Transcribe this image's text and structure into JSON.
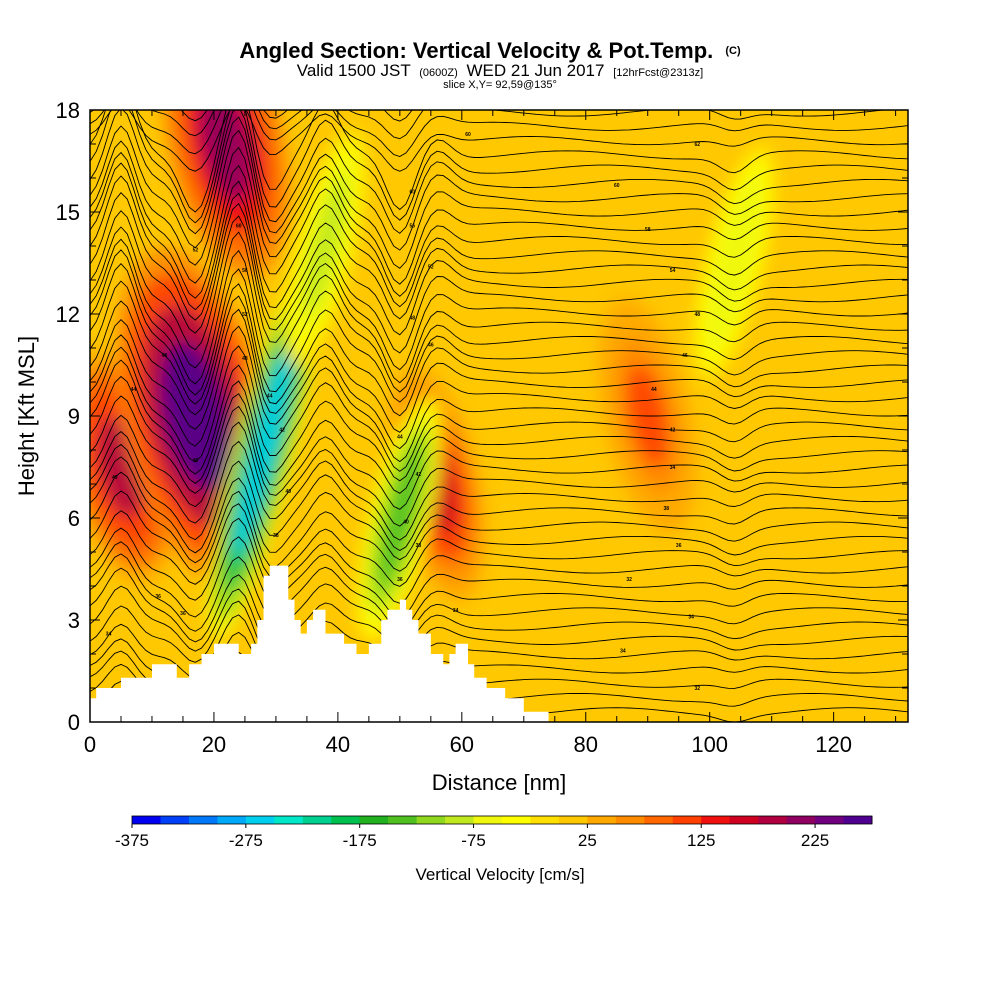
{
  "title": {
    "main": "Angled Section: Vertical Velocity & Pot.Temp.",
    "unit_tag": "(C)",
    "valid_prefix": "Valid 1500 JST",
    "valid_utc": "(0600Z)",
    "valid_date": "WED 21 Jun 2017",
    "forecast_tag": "[12hrFcst@2313z]",
    "slice": "slice X,Y= 92,59@135°"
  },
  "chart_data": {
    "type": "heatmap",
    "xlabel": "Distance [nm]",
    "ylabel": "Height [Kft MSL]",
    "xlim": [
      0,
      132
    ],
    "ylim": [
      0,
      18
    ],
    "x_ticks": [
      "0",
      "20",
      "40",
      "60",
      "80",
      "100",
      "120"
    ],
    "y_ticks": [
      "0",
      "3",
      "6",
      "9",
      "12",
      "15",
      "18"
    ],
    "colorbar": {
      "title": "Vertical Velocity [cm/s]",
      "min": -375,
      "max": 275,
      "step": 25,
      "labels": [
        "-375",
        "-275",
        "-175",
        "-75",
        "25",
        "125",
        "225"
      ],
      "colors": [
        "#0000f0",
        "#0040f8",
        "#0078f8",
        "#00a8f8",
        "#00d0f0",
        "#00e8c8",
        "#00d090",
        "#00c050",
        "#20b020",
        "#50c020",
        "#90d820",
        "#c0e820",
        "#f0f810",
        "#ffff00",
        "#ffe000",
        "#ffc800",
        "#ffa800",
        "#ff8c00",
        "#ff6800",
        "#ff4000",
        "#f01010",
        "#d00020",
        "#b00040",
        "#900060",
        "#700080",
        "#500090"
      ]
    },
    "terrain": [
      [
        0,
        0.7
      ],
      [
        1,
        0.7
      ],
      [
        1,
        1.0
      ],
      [
        5,
        1.0
      ],
      [
        5,
        1.3
      ],
      [
        10,
        1.3
      ],
      [
        10,
        1.7
      ],
      [
        14,
        1.7
      ],
      [
        14,
        1.3
      ],
      [
        16,
        1.3
      ],
      [
        16,
        1.7
      ],
      [
        18,
        1.7
      ],
      [
        18,
        2.0
      ],
      [
        20,
        2.0
      ],
      [
        20,
        2.3
      ],
      [
        24,
        2.3
      ],
      [
        24,
        2.0
      ],
      [
        26,
        2.0
      ],
      [
        26,
        2.3
      ],
      [
        27,
        2.3
      ],
      [
        27,
        3.0
      ],
      [
        28,
        3.0
      ],
      [
        28,
        4.3
      ],
      [
        29,
        4.3
      ],
      [
        29,
        4.6
      ],
      [
        32,
        4.6
      ],
      [
        32,
        3.6
      ],
      [
        33,
        3.6
      ],
      [
        33,
        3.0
      ],
      [
        34,
        3.0
      ],
      [
        34,
        2.6
      ],
      [
        35,
        2.6
      ],
      [
        35,
        3.0
      ],
      [
        36,
        3.0
      ],
      [
        36,
        3.3
      ],
      [
        38,
        3.3
      ],
      [
        38,
        2.6
      ],
      [
        41,
        2.6
      ],
      [
        41,
        2.3
      ],
      [
        43,
        2.3
      ],
      [
        43,
        2.0
      ],
      [
        45,
        2.0
      ],
      [
        45,
        2.3
      ],
      [
        47,
        2.3
      ],
      [
        47,
        3.0
      ],
      [
        48,
        3.0
      ],
      [
        48,
        3.3
      ],
      [
        50,
        3.3
      ],
      [
        50,
        3.6
      ],
      [
        51,
        3.6
      ],
      [
        51,
        3.3
      ],
      [
        52,
        3.3
      ],
      [
        52,
        3.0
      ],
      [
        53,
        3.0
      ],
      [
        53,
        2.6
      ],
      [
        55,
        2.6
      ],
      [
        55,
        2.0
      ],
      [
        57,
        2.0
      ],
      [
        57,
        1.7
      ],
      [
        58,
        1.7
      ],
      [
        58,
        2.0
      ],
      [
        59,
        2.0
      ],
      [
        59,
        2.3
      ],
      [
        61,
        2.3
      ],
      [
        61,
        1.7
      ],
      [
        62,
        1.7
      ],
      [
        62,
        1.3
      ],
      [
        64,
        1.3
      ],
      [
        64,
        1.0
      ],
      [
        67,
        1.0
      ],
      [
        67,
        0.7
      ],
      [
        70,
        0.7
      ],
      [
        70,
        0.3
      ],
      [
        74,
        0.3
      ],
      [
        74,
        0.0
      ],
      [
        132,
        0.0
      ]
    ],
    "updraft_cores": [
      {
        "x": 5,
        "z": 7.5,
        "w": 175
      },
      {
        "x": 17,
        "z": 9.0,
        "w": 250
      },
      {
        "x": 22,
        "z": 17.0,
        "w": 200
      },
      {
        "x": 56,
        "z": 7.0,
        "w": 150
      },
      {
        "x": 90,
        "z": 9.0,
        "w": 100
      }
    ],
    "downdraft_bands": [
      {
        "x": 28,
        "z": 8.0,
        "w": -275
      },
      {
        "x": 50,
        "z": 6.0,
        "w": -150
      },
      {
        "x": 38,
        "z": 14.0,
        "w": -100
      },
      {
        "x": 104,
        "z": 13.5,
        "w": -75
      }
    ],
    "theta_contour_labels": [
      {
        "x": 3,
        "z": 2.6,
        "text": "34"
      },
      {
        "x": 11,
        "z": 3.7,
        "text": "36"
      },
      {
        "x": 15,
        "z": 3.2,
        "text": "36"
      },
      {
        "x": 4,
        "z": 7.2,
        "text": "40"
      },
      {
        "x": 7,
        "z": 9.8,
        "text": "44"
      },
      {
        "x": 12,
        "z": 10.8,
        "text": "48"
      },
      {
        "x": 17,
        "z": 7.7,
        "text": "46"
      },
      {
        "x": 17,
        "z": 13.9,
        "text": "52"
      },
      {
        "x": 24,
        "z": 14.6,
        "text": "60"
      },
      {
        "x": 25,
        "z": 13.3,
        "text": "56"
      },
      {
        "x": 25,
        "z": 12.0,
        "text": "52"
      },
      {
        "x": 25,
        "z": 10.7,
        "text": "48"
      },
      {
        "x": 29,
        "z": 9.6,
        "text": "44"
      },
      {
        "x": 31,
        "z": 8.6,
        "text": "42"
      },
      {
        "x": 32,
        "z": 6.8,
        "text": "40"
      },
      {
        "x": 30,
        "z": 5.5,
        "text": "38"
      },
      {
        "x": 52,
        "z": 15.6,
        "text": "60"
      },
      {
        "x": 52,
        "z": 14.6,
        "text": "56"
      },
      {
        "x": 55,
        "z": 13.4,
        "text": "52"
      },
      {
        "x": 52,
        "z": 11.9,
        "text": "48"
      },
      {
        "x": 55,
        "z": 11.1,
        "text": "46"
      },
      {
        "x": 50,
        "z": 8.4,
        "text": "44"
      },
      {
        "x": 53,
        "z": 7.3,
        "text": "42"
      },
      {
        "x": 51,
        "z": 5.9,
        "text": "40"
      },
      {
        "x": 53,
        "z": 5.2,
        "text": "38"
      },
      {
        "x": 50,
        "z": 4.2,
        "text": "36"
      },
      {
        "x": 59,
        "z": 3.3,
        "text": "34"
      },
      {
        "x": 61,
        "z": 17.3,
        "text": "60"
      },
      {
        "x": 85,
        "z": 15.8,
        "text": "60"
      },
      {
        "x": 90,
        "z": 14.5,
        "text": "58"
      },
      {
        "x": 94,
        "z": 13.3,
        "text": "54"
      },
      {
        "x": 98,
        "z": 12.0,
        "text": "48"
      },
      {
        "x": 96,
        "z": 10.8,
        "text": "46"
      },
      {
        "x": 91,
        "z": 9.8,
        "text": "44"
      },
      {
        "x": 94,
        "z": 8.6,
        "text": "42"
      },
      {
        "x": 94,
        "z": 7.5,
        "text": "34"
      },
      {
        "x": 93,
        "z": 6.3,
        "text": "38"
      },
      {
        "x": 95,
        "z": 5.2,
        "text": "36"
      },
      {
        "x": 87,
        "z": 4.2,
        "text": "32"
      },
      {
        "x": 97,
        "z": 3.1,
        "text": "34"
      },
      {
        "x": 86,
        "z": 2.1,
        "text": "34"
      },
      {
        "x": 98,
        "z": 1.0,
        "text": "32"
      },
      {
        "x": 98,
        "z": 17.0,
        "text": "62"
      }
    ]
  }
}
